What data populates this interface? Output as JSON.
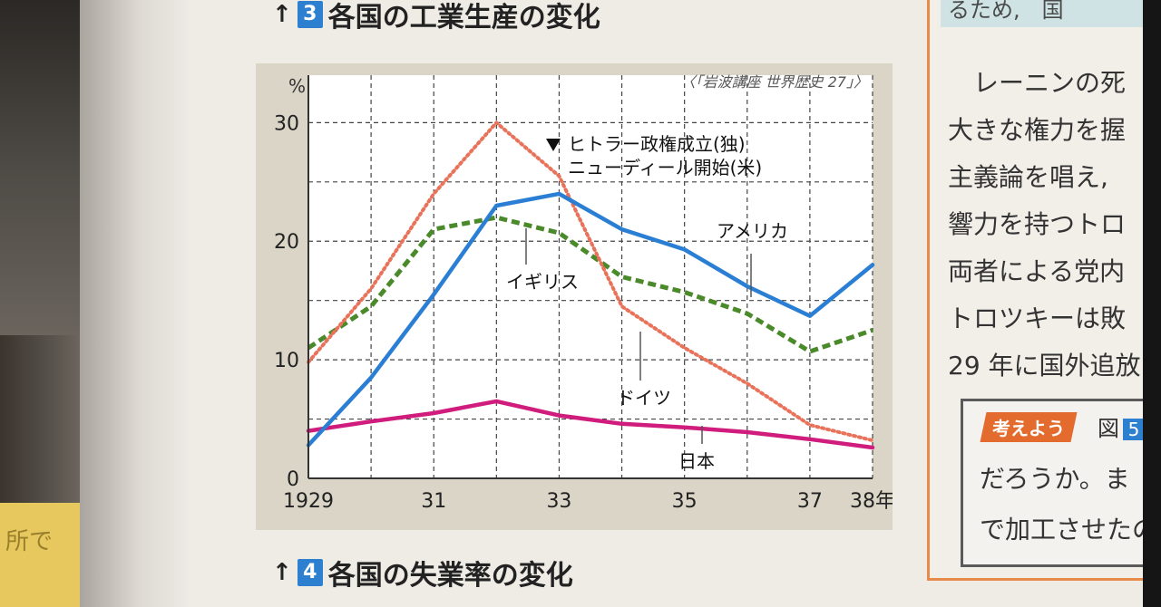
{
  "heading_top": {
    "arrow": "↑",
    "number": "3",
    "title": "各国の工業生産の変化"
  },
  "heading_bottom": {
    "arrow": "↑",
    "number": "4",
    "title": "各国の失業率の変化"
  },
  "sticky_note": "所で",
  "chart_data": {
    "type": "line",
    "source": "〈「岩波講座 世界歴史 27」〉",
    "ylabel": "%",
    "ylim": [
      0,
      34
    ],
    "xlim": [
      1929,
      1938
    ],
    "x_ticks": [
      1929,
      1931,
      1933,
      1935,
      1937,
      1938
    ],
    "x_tick_labels": [
      "1929",
      "31",
      "33",
      "35",
      "37",
      "38年"
    ],
    "y_ticks": [
      0,
      10,
      20,
      30
    ],
    "y_tick_labels": [
      "0",
      "10",
      "20",
      "30"
    ],
    "grid": true,
    "series": [
      {
        "name": "アメリカ",
        "color": "#2a7fd4",
        "style": "solid",
        "x": [
          1929,
          1930,
          1931,
          1932,
          1933,
          1934,
          1935,
          1936,
          1937,
          1938
        ],
        "y": [
          2.8,
          8.5,
          15.5,
          23,
          24,
          21,
          19.3,
          16.2,
          13.7,
          18
        ]
      },
      {
        "name": "イギリス",
        "color": "#4a8a2a",
        "style": "dashed",
        "x": [
          1929,
          1930,
          1931,
          1932,
          1933,
          1934,
          1935,
          1936,
          1937,
          1938
        ],
        "y": [
          11,
          14.5,
          21,
          22,
          20.7,
          17,
          15.7,
          13.9,
          10.7,
          12.5
        ]
      },
      {
        "name": "ドイツ",
        "color": "#e8735a",
        "style": "dotted",
        "x": [
          1929,
          1930,
          1931,
          1932,
          1933,
          1934,
          1935,
          1936,
          1937,
          1938
        ],
        "y": [
          9.8,
          16,
          24,
          30,
          25.5,
          14.5,
          11,
          8,
          4.5,
          3.2
        ]
      },
      {
        "name": "日本",
        "color": "#d01c7c",
        "style": "solid",
        "x": [
          1929,
          1930,
          1931,
          1932,
          1933,
          1934,
          1935,
          1936,
          1937,
          1938
        ],
        "y": [
          4,
          4.8,
          5.5,
          6.5,
          5.3,
          4.6,
          4.3,
          3.9,
          3.3,
          2.6
        ]
      }
    ],
    "annotations": [
      {
        "text": "ヒトラー政権成立(独)",
        "x": 1933
      },
      {
        "text": "ニューディール開始(米)",
        "x": 1933
      }
    ]
  },
  "side_text": {
    "top": "るため,　国",
    "lines": [
      "レーニンの死",
      "大きな権力を握",
      "主義論を唱え,",
      "響力を持つトロ",
      "両者による党内",
      "トロツキーは敗",
      "29 年に国外追放"
    ],
    "consider_tag": "考えよう",
    "consider_fig": "図",
    "consider_num": "5",
    "consider_lines": [
      "だろうか。ま",
      "で加工させたの"
    ]
  }
}
